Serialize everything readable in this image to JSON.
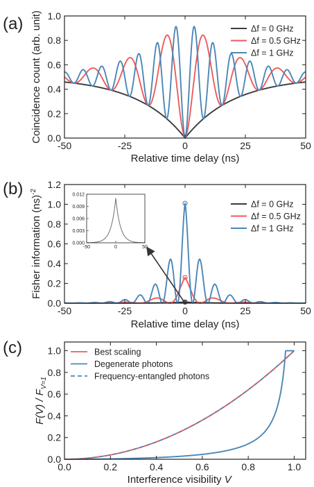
{
  "colors": {
    "black": "#3a3a3a",
    "red": "#ee5a5a",
    "blue": "#4a86b6",
    "grey": "#6e6e6e",
    "axis": "#222222"
  },
  "chart_data": [
    {
      "panel": "(a)",
      "type": "line",
      "xlabel": "Relative time delay (ns)",
      "ylabel": "Coincidence count (arb. unit)",
      "xlim": [
        -50,
        50
      ],
      "ylim": [
        0,
        1.0
      ],
      "xticks": [
        -50,
        -25,
        0,
        25,
        50
      ],
      "yticks": [
        0.0,
        0.2,
        0.4,
        0.6,
        0.8,
        1.0
      ],
      "legend": "top-right",
      "model": {
        "tau_ns": 20
      },
      "series": [
        {
          "name": "Δf = 0 GHz",
          "color": "black",
          "df_ghz": 0
        },
        {
          "name": "Δf = 0.5 GHz",
          "color": "red",
          "df_ghz": 0.5
        },
        {
          "name": "Δf = 1 GHz",
          "color": "blue",
          "df_ghz": 1
        }
      ]
    },
    {
      "panel": "(b)",
      "type": "line",
      "xlabel": "Relative time delay (ns)",
      "ylabel": "Fisher information (ns)",
      "ylabel_sup": "-2",
      "xlim": [
        -50,
        50
      ],
      "ylim": [
        0,
        1.2
      ],
      "xticks": [
        -50,
        -25,
        0,
        25,
        50
      ],
      "yticks": [
        0.0,
        0.2,
        0.4,
        0.6,
        0.8,
        1.0,
        1.2
      ],
      "legend": "top-right",
      "series": [
        {
          "name": "Δf = 0 GHz",
          "color": "black",
          "df_ghz": 0,
          "peak": 0.011
        },
        {
          "name": "Δf = 0.5 GHz",
          "color": "red",
          "df_ghz": 0.5,
          "peak": 0.26
        },
        {
          "name": "Δf = 1 GHz",
          "color": "blue",
          "df_ghz": 1,
          "peak": 1.01
        }
      ],
      "inset": {
        "series": "Δf = 0 GHz",
        "xlim": [
          -50,
          50
        ],
        "ylim": [
          0,
          0.012
        ],
        "xticks": [
          -50,
          0,
          50
        ],
        "yticks": [
          "0.000",
          "0.003",
          "0.006",
          "0.009",
          "0.012"
        ],
        "xtick_labels": [
          "-50",
          "0",
          "50"
        ]
      }
    },
    {
      "panel": "(c)",
      "type": "line",
      "xlabel": "Interference visibility ",
      "xlabel_var": "V",
      "ylabel": "F(V) / F",
      "ylabel_sub": "V=1",
      "xlim": [
        0,
        1.05
      ],
      "ylim": [
        0,
        1.08
      ],
      "xticks": [
        0.0,
        0.2,
        0.4,
        0.6,
        0.8,
        1.0
      ],
      "yticks": [
        0.0,
        0.2,
        0.4,
        0.6,
        0.8,
        1.0
      ],
      "legend": "top-left",
      "series": [
        {
          "name": "Best scaling",
          "color": "red",
          "style": "solid",
          "form": "V^2"
        },
        {
          "name": "Degenerate photons",
          "color": "blue",
          "style": "solid",
          "form": "V^2/(1-V^2) normalized"
        },
        {
          "name": "Frequency-entangled photons",
          "color": "blue",
          "style": "dashed",
          "form": "V^2"
        }
      ]
    }
  ]
}
